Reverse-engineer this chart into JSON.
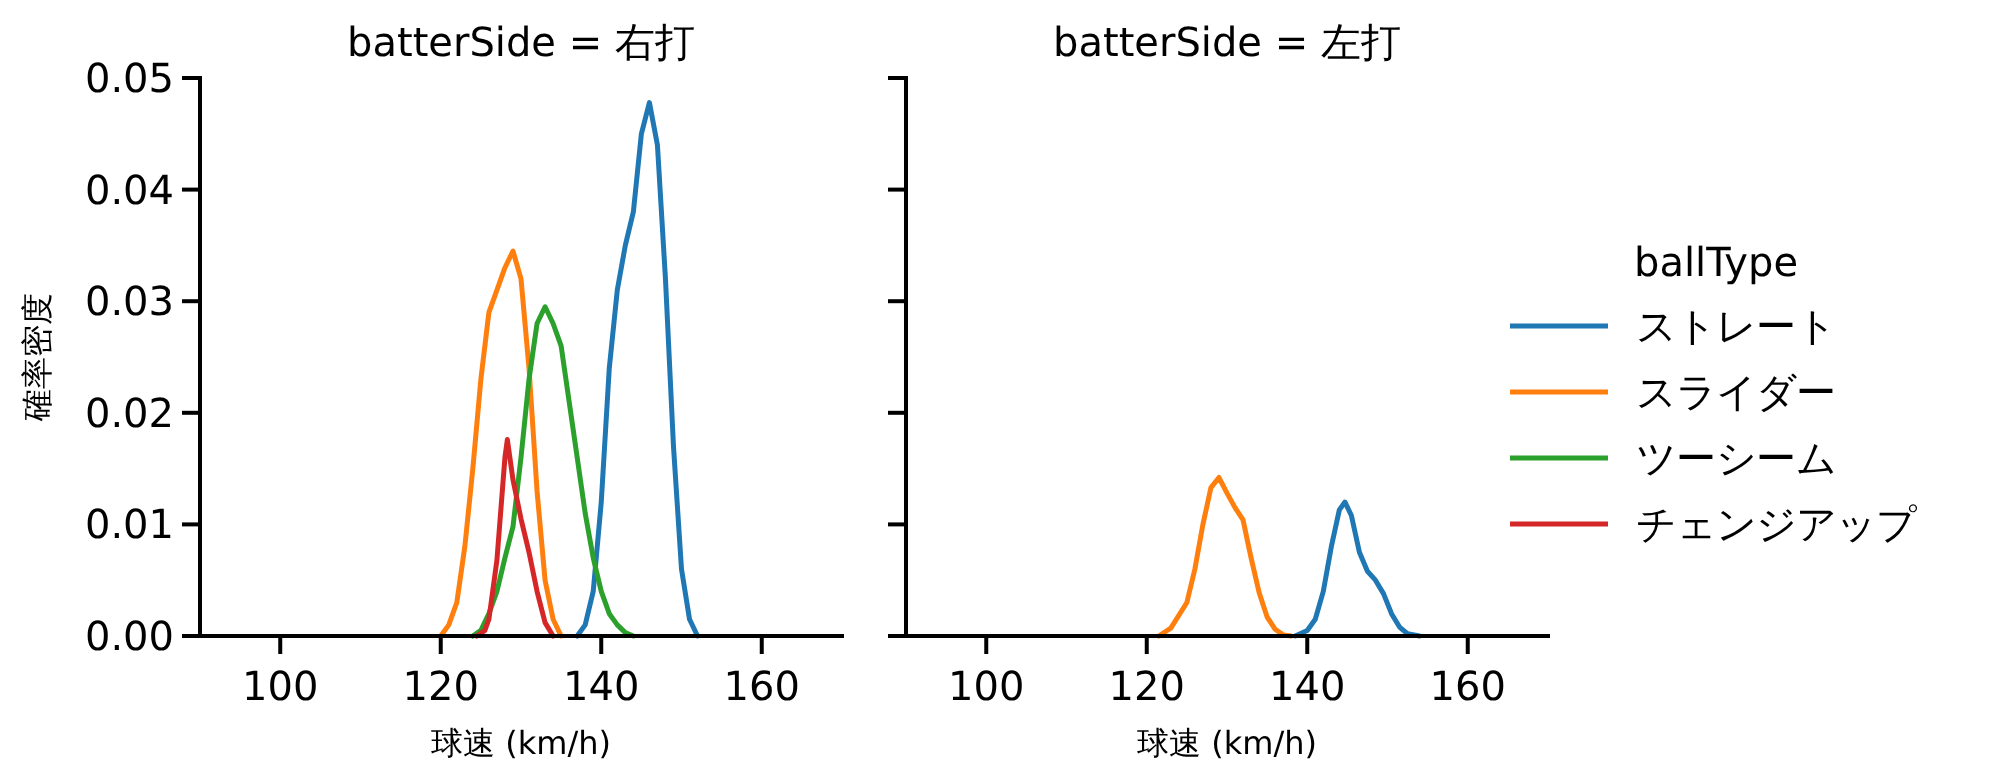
{
  "chart_data": [
    {
      "type": "line",
      "title": "batterSide = 右打",
      "xlabel": "球速 (km/h)",
      "ylabel": "確率密度",
      "xlim": [
        90,
        170
      ],
      "ylim": [
        0,
        0.05
      ],
      "xticks": [
        100,
        120,
        140,
        160
      ],
      "yticks": [
        {
          "value": 0,
          "label": "0.00"
        },
        {
          "value": 0.01,
          "label": "0.01"
        },
        {
          "value": 0.02,
          "label": "0.02"
        },
        {
          "value": 0.03,
          "label": "0.03"
        },
        {
          "value": 0.04,
          "label": "0.04"
        },
        {
          "value": 0.05,
          "label": "0.05"
        }
      ],
      "grid": false,
      "legend": "right",
      "legend_title": "ballType",
      "series": [
        {
          "name": "ストレート",
          "color": "#1f77b4",
          "x": [
            137,
            138,
            139,
            140,
            141,
            142,
            143,
            144,
            145,
            146,
            147,
            148,
            149,
            150,
            151,
            152
          ],
          "values": [
            0,
            0.001,
            0.004,
            0.012,
            0.024,
            0.031,
            0.035,
            0.038,
            0.045,
            0.0478,
            0.044,
            0.032,
            0.017,
            0.006,
            0.0015,
            0
          ]
        },
        {
          "name": "スライダー",
          "color": "#ff7f0e",
          "x": [
            120,
            121,
            122,
            123,
            124,
            125,
            126,
            127,
            128,
            129,
            130,
            131,
            132,
            133,
            134,
            135
          ],
          "values": [
            0,
            0.001,
            0.003,
            0.008,
            0.015,
            0.023,
            0.029,
            0.031,
            0.033,
            0.0345,
            0.032,
            0.024,
            0.013,
            0.005,
            0.0015,
            0
          ]
        },
        {
          "name": "ツーシーム",
          "color": "#2ca02c",
          "x": [
            124,
            125,
            126,
            127,
            128,
            129,
            130,
            131,
            132,
            133,
            134,
            135,
            136,
            137,
            138,
            139,
            140,
            141,
            142,
            143,
            144
          ],
          "values": [
            0,
            0.0005,
            0.002,
            0.004,
            0.007,
            0.0098,
            0.016,
            0.023,
            0.028,
            0.0295,
            0.028,
            0.026,
            0.021,
            0.016,
            0.011,
            0.007,
            0.004,
            0.002,
            0.001,
            0.0003,
            0
          ]
        },
        {
          "name": "チェンジアップ",
          "color": "#d62728",
          "x": [
            124.5,
            125.5,
            126,
            127,
            128,
            128.3,
            129,
            130,
            131,
            132,
            133,
            134
          ],
          "values": [
            0,
            0.0005,
            0.0015,
            0.0068,
            0.016,
            0.0176,
            0.014,
            0.0105,
            0.0075,
            0.004,
            0.0012,
            0
          ]
        }
      ]
    },
    {
      "type": "line",
      "title": "batterSide = 左打",
      "xlabel": "球速 (km/h)",
      "xlim": [
        90,
        170
      ],
      "ylim": [
        0,
        0.05
      ],
      "xticks": [
        100,
        120,
        140,
        160
      ],
      "yticks": [
        0.0,
        0.01,
        0.02,
        0.03,
        0.04,
        0.05
      ],
      "grid": false,
      "tick_labels": "x",
      "series": [
        {
          "color": "#1f77b4",
          "x": [
            138.5,
            140,
            141,
            142,
            143,
            144,
            144.7,
            145.5,
            146.5,
            147.5,
            148.5,
            149.5,
            150.5,
            151.5,
            152.5,
            154
          ],
          "values": [
            0,
            0.0005,
            0.0015,
            0.004,
            0.008,
            0.0113,
            0.012,
            0.0108,
            0.0075,
            0.0058,
            0.005,
            0.0038,
            0.002,
            0.0008,
            0.0002,
            0
          ]
        },
        {
          "color": "#ff7f0e",
          "x": [
            121.5,
            123,
            125,
            126,
            127,
            128,
            129,
            130,
            131,
            132,
            133,
            134,
            135,
            136,
            137,
            138
          ],
          "values": [
            0,
            0.0007,
            0.003,
            0.006,
            0.01,
            0.0133,
            0.0142,
            0.0128,
            0.0115,
            0.0104,
            0.007,
            0.0039,
            0.0017,
            0.0006,
            0.0001,
            0
          ]
        }
      ]
    }
  ]
}
